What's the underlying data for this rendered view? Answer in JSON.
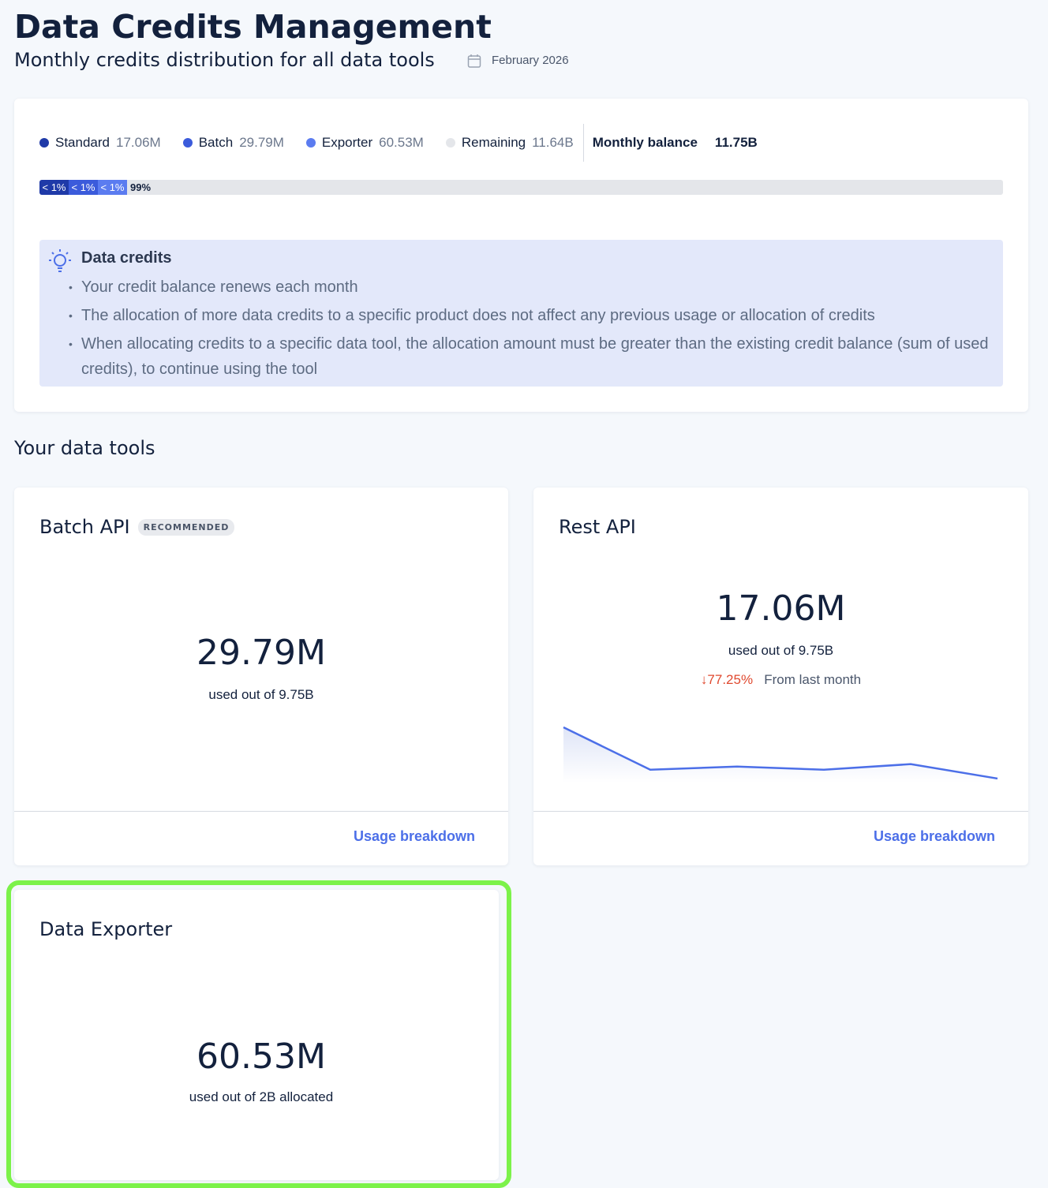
{
  "header": {
    "title": "Data Credits Management",
    "subtitle": "Monthly credits distribution for all data tools",
    "date": "February 2026"
  },
  "summary": {
    "legend": [
      {
        "name": "Standard",
        "value": "17.06M",
        "color": "#1f3aa8"
      },
      {
        "name": "Batch",
        "value": "29.79M",
        "color": "#3b5bdb"
      },
      {
        "name": "Exporter",
        "value": "60.53M",
        "color": "#5b7cf0"
      },
      {
        "name": "Remaining",
        "value": "11.64B",
        "color": "#e4e6ea"
      }
    ],
    "balance_label": "Monthly balance",
    "balance_value": "11.75B",
    "bar_labels": [
      "< 1%",
      "< 1%",
      "< 1%",
      "99%"
    ]
  },
  "info": {
    "title": "Data credits",
    "items": [
      "Your credit balance renews each month",
      "The allocation of more data credits to a specific product does not affect any previous usage or allocation of credits",
      "When allocating credits to a specific data tool, the allocation amount must be greater than the existing credit balance (sum of used credits), to continue using the tool"
    ]
  },
  "section_title": "Your data tools",
  "tools": [
    {
      "name": "Batch API",
      "badge": "RECOMMENDED",
      "value": "29.79M",
      "caption": "used out of 9.75B",
      "link": "Usage breakdown"
    },
    {
      "name": "Rest API",
      "value": "17.06M",
      "caption": "used out of 9.75B",
      "change": "77.25%",
      "change_note": "From last month",
      "link": "Usage breakdown",
      "sparkline": {
        "values": [
          69,
          16,
          20,
          16,
          23,
          5
        ],
        "color": "#4c6fe8"
      }
    },
    {
      "name": "Data Exporter",
      "value": "60.53M",
      "caption": "used out of 2B allocated"
    }
  ]
}
